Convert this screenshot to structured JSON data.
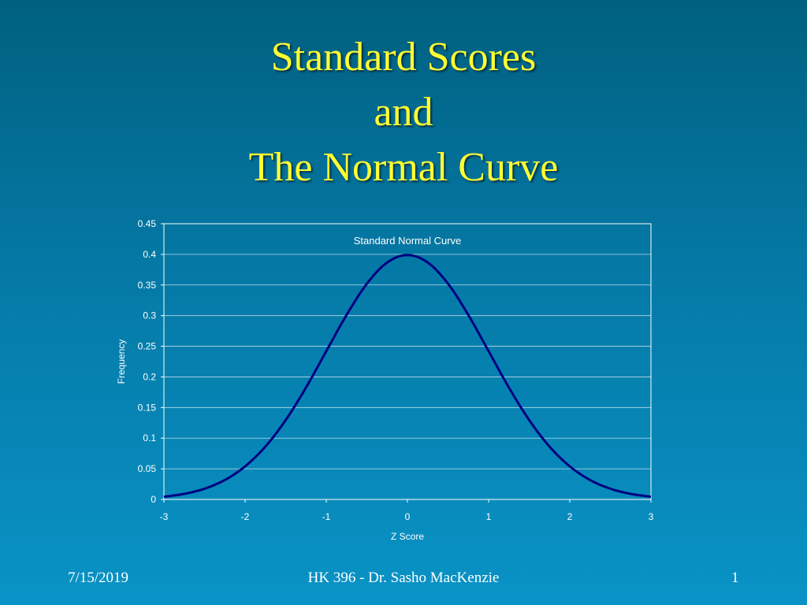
{
  "slide": {
    "title_lines": [
      "Standard Scores",
      "and",
      "The Normal Curve"
    ],
    "footer_date": "7/15/2019",
    "footer_center": "HK 396 - Dr. Sasho MacKenzie",
    "footer_page": "1"
  },
  "colors": {
    "title": "#ffff33",
    "curve": "#000080",
    "plot_border": "#ffffff",
    "gridline": "#bcd9e8"
  },
  "chart_data": {
    "type": "line",
    "title": "Standard Normal Curve",
    "xlabel": "Z Score",
    "ylabel": "Frequency",
    "xlim": [
      -3,
      3
    ],
    "ylim": [
      0,
      0.45
    ],
    "x_ticks": [
      "-3",
      "-2",
      "-1",
      "0",
      "1",
      "2",
      "3"
    ],
    "y_ticks": [
      "0",
      "0.05",
      "0.1",
      "0.15",
      "0.2",
      "0.25",
      "0.3",
      "0.35",
      "0.4",
      "0.45"
    ],
    "grid": true,
    "series": [
      {
        "x": [
          -3,
          -2.75,
          -2.5,
          -2.25,
          -2,
          -1.75,
          -1.5,
          -1.25,
          -1,
          -0.75,
          -0.5,
          -0.25,
          0,
          0.25,
          0.5,
          0.75,
          1,
          1.25,
          1.5,
          1.75,
          2,
          2.25,
          2.5,
          2.75,
          3
        ],
        "y": [
          0.0044,
          0.0091,
          0.0175,
          0.0317,
          0.054,
          0.0863,
          0.1295,
          0.1826,
          0.242,
          0.3011,
          0.3521,
          0.3867,
          0.3989,
          0.3867,
          0.3521,
          0.3011,
          0.242,
          0.1826,
          0.1295,
          0.0863,
          0.054,
          0.0317,
          0.0175,
          0.0091,
          0.0044
        ]
      }
    ]
  }
}
